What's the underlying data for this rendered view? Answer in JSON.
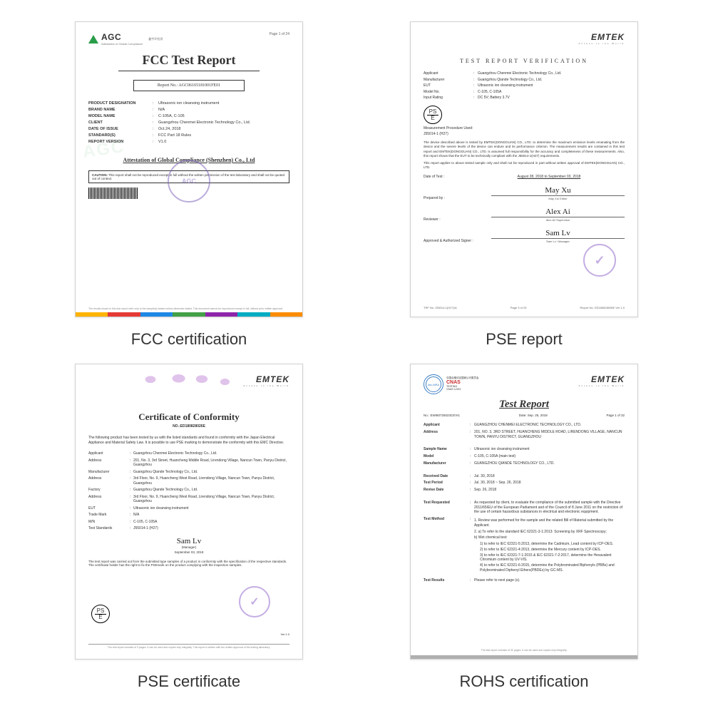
{
  "captions": {
    "fcc": "FCC certification",
    "pse_report": "PSE report",
    "pse_cert": "PSE certificate",
    "rohs": "ROHS certification"
  },
  "doc1": {
    "logo_text": "AGC",
    "logo_sub": "鑫宇环检测",
    "logo_sub2": "Attestation of Global Compliance",
    "page": "Page 1 of 24",
    "title": "FCC Test Report",
    "report_no": "Report No.: AGC06165181001FE01",
    "rows": [
      {
        "label": "PRODUCT DESIGNATION",
        "val": "Ultrasonic ion cleansing instrument"
      },
      {
        "label": "BRAND NAME",
        "val": "N/A"
      },
      {
        "label": "MODEL NAME",
        "val": "C-105A, C-105"
      },
      {
        "label": "CLIENT",
        "val": "Guangzhou Chenmei Electronic Technology Co., Ltd."
      },
      {
        "label": "DATE OF ISSUE",
        "val": "Oct.24, 2018"
      },
      {
        "label": "STANDARD(S)",
        "val": "FCC Part 18 Rules"
      },
      {
        "label": "REPORT VERSION",
        "val": "V1.0"
      }
    ],
    "attestation": "Attestation of Global Compliance (Shenzhen) Co., Ltd",
    "caution_title": "CAUTION:",
    "caution": "This report shall not be reproduced except in full without the written permission of the test laboratory and shall not be quoted out of context.",
    "stamp": "AGC",
    "footer": "The results shown in this test report refer only to the sample(s) tested unless otherwise stated. This document cannot be reproduced except in full, without prior written approval.",
    "colors": [
      "#ffb300",
      "#e53935",
      "#1e88e5",
      "#43a047",
      "#8e24aa",
      "#00acc1",
      "#fb8c00"
    ]
  },
  "doc2": {
    "logo": "EMTEK",
    "logo_sub": "Access to the World",
    "title": "TEST  REPORT  VERIFICATION",
    "rows": [
      {
        "label": "Applicant",
        "val": "Guangzhou Chenmei Electronic Technology Co., Ltd."
      },
      {
        "label": "Manufacturer",
        "val": "Guangzhou Qiande Technology Co., Ltd."
      },
      {
        "label": "EUT",
        "val": "Ultrasonic ion cleansing instrument"
      },
      {
        "label": "Model No.",
        "val": "C-105, C-105A"
      },
      {
        "label": "Input Rating",
        "val": "DC 5V; Battery 3.7V"
      }
    ],
    "pse": {
      "top": "PS",
      "bot": "E"
    },
    "proc_label": "Measurement Procedure Used:",
    "proc": "J55014-1 (H27)",
    "para1": "The device described above is tested by EMTEK(DONGGUAN) CO., LTD. to determine the maximum emission levels emanating from the device and the severe levels of the device can endure and its performance criterion. The measurement results are contained in this test report and EMTEK(DONGGUAN) CO., LTD. is assumed full responsibility for the accuracy and completeness of these measurements. Also, this report shows that the EUT to be technically compliant with the J55014-1(H27) requirements.",
    "para2": "This report applies to above tested sample only and shall not be reproduced in part without written approval of EMTEK(DONGGUAN) CO., LTD.",
    "date_label": "Date of Test :",
    "date_val": "August 28, 2018 to September 03, 2018",
    "sigs": [
      {
        "label": "Prepared by :",
        "name": "May Xu",
        "role": "May Xu/ Editor"
      },
      {
        "label": "Reviewer :",
        "name": "Alex Ai",
        "role": "Alex Ai/ Supervisor"
      },
      {
        "label": "Approved & Authorized Signer :",
        "name": "Sam Lv",
        "role": "Sam Lv / Manager"
      }
    ],
    "footer": {
      "left": "TRF No. J55014-1(H27)/A",
      "mid": "Page 3 of 25",
      "right": "Report No. ED180828006E Ver 1.0"
    }
  },
  "doc3": {
    "logo": "EMTEK",
    "logo_sub": "Access to the World",
    "title": "Certificate of Conformity",
    "no": "NO.:ED180828026E",
    "intro": "The following product has been tested by us with the listed standards and found in conformity with the Japan Electrical Appliance and Material Safety Law. It is possible to use PSE marking to demonstrate the conformity with this EMC Directive.",
    "rows": [
      {
        "label": "Applicant",
        "val": "Guangzhou Chenmei Electronic Technology Co., Ltd."
      },
      {
        "label": "Address",
        "val": "201, No. 3, 3rd Street, Huancheng Middle Road, Lirendong Village, Nancun Town, Panyu District, Guangzhou"
      },
      {
        "label": "Manufacturer",
        "val": "Guangzhou Qiande Technology Co., Ltd."
      },
      {
        "label": "Address",
        "val": "3rd Floor, No. 9, Huancheng West Road, Lirendong Village, Nancun Town, Panyu District, Guangzhou"
      },
      {
        "label": "Factory",
        "val": "Guangzhou Qiande Technology Co., Ltd."
      },
      {
        "label": "Address",
        "val": "3rd Floor, No. 9, Huancheng West Road, Lirendong Village, Nancun Town, Panyu District, Guangzhou"
      },
      {
        "label": "EUT",
        "val": "Ultrasonic ion cleansing instrument"
      },
      {
        "label": "Trade Mark",
        "val": "N/A"
      },
      {
        "label": "M/N",
        "val": "C-105, C-105A"
      },
      {
        "label": "Test Standards",
        "val": "J55014-1 (H27)"
      }
    ],
    "pse": {
      "top": "PS",
      "bot": "E"
    },
    "sig_name": "Sam Lv",
    "sig_role": "(Manager)",
    "sig_date": "September 03, 2018",
    "foot": "The test report was carried out from the submitted type samples of a product in conformity with the specification of the respective standards. The certificate holder has the right to fix the PSEmark on the product complying with the inspection samples.",
    "ver": "Ver.1.0",
    "bottom": "The test report consists of 3 pages. It can be used and copied only integrally. This report is written with the written approval of the testing laboratory."
  },
  "doc4": {
    "logo": "EMTEK",
    "logo_sub": "Access to the World",
    "badge1": "ilac-MRA",
    "cnas_cn": "中国合格评定国家认可委员会",
    "cnas": "CNAS",
    "cnas_sub": "TESTING\nCNAS L2291",
    "title": "Test Report",
    "no_label": "No.:",
    "no": "EWI80725023CEVI1",
    "date_label": "Date:",
    "date": "Sep. 25, 2018",
    "page": "Page 1 of 32",
    "rows": [
      {
        "label": "Applicant",
        "val": "GUANGZHOU CHENMEI ELECTRONIC TECHNOLOGY CO., LTD."
      },
      {
        "label": "Address",
        "val": "201, NO. 3, 3RD STREET, HUANCHENG MIDDLE ROAD, LIRENDONG VILLAGE, NANCUN TOWN, PANYU DISTRICT, GUANGZHOU"
      },
      {
        "label": "",
        "val": ""
      },
      {
        "label": "Sample Name",
        "val": "Ultrasonic ion cleansing instrument"
      },
      {
        "label": "Model",
        "val": "C-105, C-105A (main test)"
      },
      {
        "label": "Manufacturer",
        "val": "GUANGZHOU QIANDE TECHNOLOGY CO., LTD."
      },
      {
        "label": "",
        "val": ""
      },
      {
        "label": "Received Date",
        "val": "Jul. 30, 2018"
      },
      {
        "label": "Test Period",
        "val": "Jul. 30, 2018 ~ Sep. 26, 2018"
      },
      {
        "label": "Revise Date",
        "val": "Sep. 26, 2018"
      },
      {
        "label": "",
        "val": ""
      },
      {
        "label": "Test Requested",
        "val": "As requested by client, to evaluate the compliance of the submitted sample with the Directive 2011/65/EU of the European Parliament and of the Council of 8 June 2011 on the restriction of the use of certain hazardous substances in electrical and electronic equipment."
      }
    ],
    "method_label": "Test Method",
    "method_intro": "1. Review was performed for the sample and the related Bill of Material submitted by the Applicant.",
    "method_2": "2. a)  To refer to the standard IEC 62321-3-1:2013: Screening by XRF Spectroscopy;",
    "method_2b": "    b)  Wet chemical test:",
    "method_list": [
      "1) to refer to IEC 62321-5:2013, determine the Cadmium, Lead content by ICP-OES.",
      "2) to refer to IEC 62321-4:2013, determine the Mercury content by ICP-OES.",
      "3) to refer to IEC 62321-7-1:2015 & IEC 62321-7-2:2017, determine the Hexavalent Chromium content by UV-VIS.",
      "4) to refer to IEC 62321-6:2015, determine the Polybrominated Biphenyls (PBBs) and Polybrominated Diphenyl Ethers(PBDEs) by GC-MS."
    ],
    "results_label": "Test Results",
    "results": "Please refer to next page (s).",
    "footer": "The test report consists of 32 pages. It can be used and copied only integrally."
  }
}
